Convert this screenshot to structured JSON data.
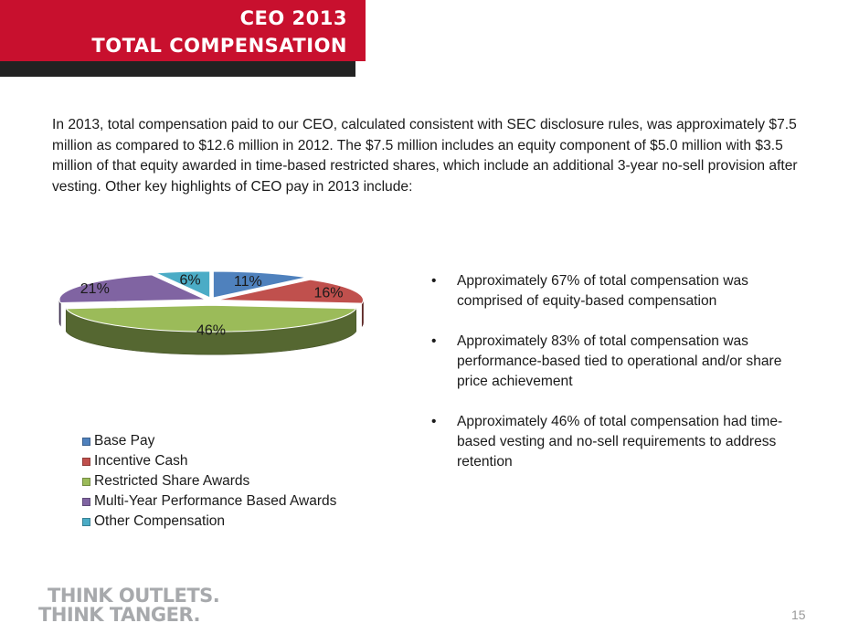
{
  "header": {
    "title_line1": "CEO 2013",
    "title_line2": "TOTAL COMPENSATION"
  },
  "intro": "In 2013, total compensation paid to our CEO, calculated consistent with SEC disclosure rules, was approximately $7.5 million as compared to $12.6 million in 2012.  The $7.5 million includes an equity component of $5.0 million with $3.5 million of that equity awarded in time-based restricted shares, which include an additional 3-year no-sell provision after vesting.  Other key highlights of CEO pay in 2013 include:",
  "chart_data": {
    "type": "pie",
    "style": "3d-exploded",
    "categories": [
      "Base Pay",
      "Incentive Cash",
      "Restricted Share Awards",
      "Multi-Year Performance Based Awards",
      "Other Compensation"
    ],
    "values": [
      11,
      16,
      46,
      21,
      6
    ],
    "labels": [
      "11%",
      "16%",
      "46%",
      "21%",
      "6%"
    ],
    "colors": [
      "#4f81bd",
      "#c0504d",
      "#9bbb59",
      "#8064a2",
      "#4bacc6"
    ],
    "legend_position": "bottom"
  },
  "bullets": [
    "Approximately 67% of total compensation was comprised of equity-based compensation",
    "Approximately 83% of total compensation was performance-based tied to operational and/or share price achievement",
    "Approximately 46% of total compensation had time-based vesting and no-sell requirements to address retention"
  ],
  "bullet_symbol": "•",
  "footer": {
    "logo_line1": "THINK OUTLETS.",
    "logo_line2": "THINK TANGER.",
    "page_number": "15"
  }
}
